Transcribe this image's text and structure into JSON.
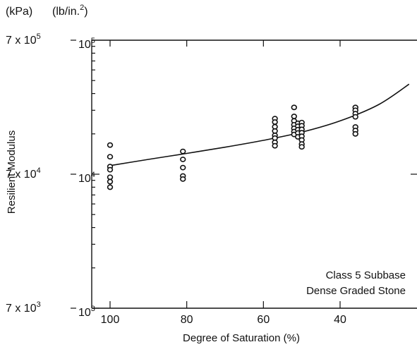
{
  "chart_data": {
    "type": "scatter",
    "title": "",
    "xlabel": "Degree of Saturation (%)",
    "ylabel": "Resilient Modulus",
    "x_reversed": true,
    "xlim": [
      100,
      22
    ],
    "x_ticks": [
      100,
      80,
      60,
      40
    ],
    "y_scale": "log",
    "ylim": [
      1000,
      100000
    ],
    "left_axis": {
      "unit_label": "(kPa)",
      "ticks": [
        {
          "value": 100000,
          "base": "7 x 10",
          "exp": "5"
        },
        {
          "value": 10000,
          "base": "7 x 10",
          "exp": "4"
        },
        {
          "value": 1000,
          "base": "7 x 10",
          "exp": "3"
        }
      ]
    },
    "right_axis": {
      "unit_label": "(lb/in.",
      "unit_exp": "2",
      "unit_close": ")",
      "ticks": [
        {
          "value": 100000,
          "base": "10",
          "exp": "5"
        },
        {
          "value": 10000,
          "base": "10",
          "exp": "4"
        },
        {
          "value": 1000,
          "base": "10",
          "exp": "3"
        }
      ]
    },
    "annotation": [
      "Class 5 Subbase",
      "Dense Graded Stone"
    ],
    "points": [
      {
        "x": 100,
        "y": 16500
      },
      {
        "x": 100,
        "y": 13500
      },
      {
        "x": 100,
        "y": 11400
      },
      {
        "x": 100,
        "y": 10800
      },
      {
        "x": 100,
        "y": 9500
      },
      {
        "x": 100,
        "y": 8800
      },
      {
        "x": 100,
        "y": 8000
      },
      {
        "x": 81,
        "y": 14800
      },
      {
        "x": 81,
        "y": 12900
      },
      {
        "x": 81,
        "y": 11200
      },
      {
        "x": 81,
        "y": 9700
      },
      {
        "x": 81,
        "y": 9200
      },
      {
        "x": 57,
        "y": 26000
      },
      {
        "x": 57,
        "y": 24500
      },
      {
        "x": 57,
        "y": 22600
      },
      {
        "x": 57,
        "y": 21000
      },
      {
        "x": 57,
        "y": 19500
      },
      {
        "x": 57,
        "y": 18600
      },
      {
        "x": 57,
        "y": 17300
      },
      {
        "x": 57,
        "y": 16300
      },
      {
        "x": 52,
        "y": 31500
      },
      {
        "x": 52,
        "y": 27000
      },
      {
        "x": 52,
        "y": 25000
      },
      {
        "x": 52,
        "y": 23400
      },
      {
        "x": 52,
        "y": 22000
      },
      {
        "x": 52,
        "y": 20800
      },
      {
        "x": 52,
        "y": 19800
      },
      {
        "x": 51,
        "y": 24000
      },
      {
        "x": 51,
        "y": 22800
      },
      {
        "x": 51,
        "y": 21500
      },
      {
        "x": 51,
        "y": 20300
      },
      {
        "x": 51,
        "y": 19000
      },
      {
        "x": 50,
        "y": 24300
      },
      {
        "x": 50,
        "y": 23000
      },
      {
        "x": 50,
        "y": 21600
      },
      {
        "x": 50,
        "y": 20400
      },
      {
        "x": 50,
        "y": 19200
      },
      {
        "x": 50,
        "y": 18000
      },
      {
        "x": 50,
        "y": 16800
      },
      {
        "x": 50,
        "y": 16000
      },
      {
        "x": 36,
        "y": 31500
      },
      {
        "x": 36,
        "y": 30000
      },
      {
        "x": 36,
        "y": 28300
      },
      {
        "x": 36,
        "y": 26800
      },
      {
        "x": 36,
        "y": 22500
      },
      {
        "x": 36,
        "y": 21200
      },
      {
        "x": 36,
        "y": 20000
      }
    ],
    "fit_line": [
      {
        "x": 100,
        "y": 11600
      },
      {
        "x": 90,
        "y": 12900
      },
      {
        "x": 80,
        "y": 14300
      },
      {
        "x": 70,
        "y": 15900
      },
      {
        "x": 60,
        "y": 17900
      },
      {
        "x": 50,
        "y": 20600
      },
      {
        "x": 40,
        "y": 25000
      },
      {
        "x": 30,
        "y": 33000
      },
      {
        "x": 22,
        "y": 47000
      }
    ]
  }
}
